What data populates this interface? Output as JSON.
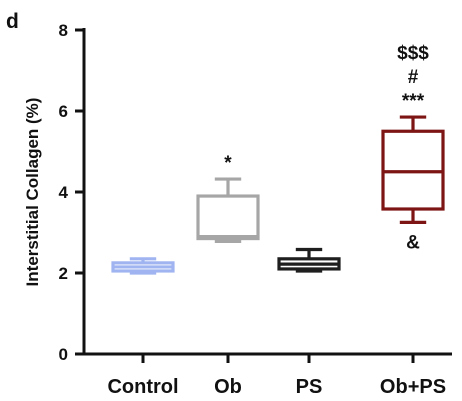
{
  "chart_data": {
    "type": "box",
    "panel_label": "d",
    "title": "",
    "xlabel": "",
    "ylabel": "Interstitial Collagen (%)",
    "ylim": [
      0,
      8
    ],
    "yticks": [
      "0",
      "2",
      "4",
      "6",
      "8"
    ],
    "categories": [
      "Control",
      "Ob",
      "PS",
      "Ob+PS"
    ],
    "series": [
      {
        "category": "Control",
        "min": 2.0,
        "q1": 2.05,
        "median": 2.15,
        "q3": 2.25,
        "max": 2.35,
        "color": "#9fb4f0"
      },
      {
        "category": "Ob",
        "min": 2.78,
        "q1": 2.85,
        "median": 2.9,
        "q3": 3.9,
        "max": 4.32,
        "color": "#a6a6a6"
      },
      {
        "category": "PS",
        "min": 2.05,
        "q1": 2.1,
        "median": 2.22,
        "q3": 2.35,
        "max": 2.58,
        "color": "#1e1e1e"
      },
      {
        "category": "Ob+PS",
        "min": 3.25,
        "q1": 3.58,
        "median": 4.5,
        "q3": 5.5,
        "max": 5.85,
        "color": "#7d1515"
      }
    ],
    "annotations": [
      {
        "category": "Ob",
        "position": "above",
        "text": "*"
      },
      {
        "category": "Ob+PS",
        "position": "above",
        "text": "***"
      },
      {
        "category": "Ob+PS",
        "position": "above",
        "text": "#"
      },
      {
        "category": "Ob+PS",
        "position": "above",
        "text": "$$$"
      },
      {
        "category": "Ob+PS",
        "position": "below",
        "text": "&"
      }
    ]
  }
}
